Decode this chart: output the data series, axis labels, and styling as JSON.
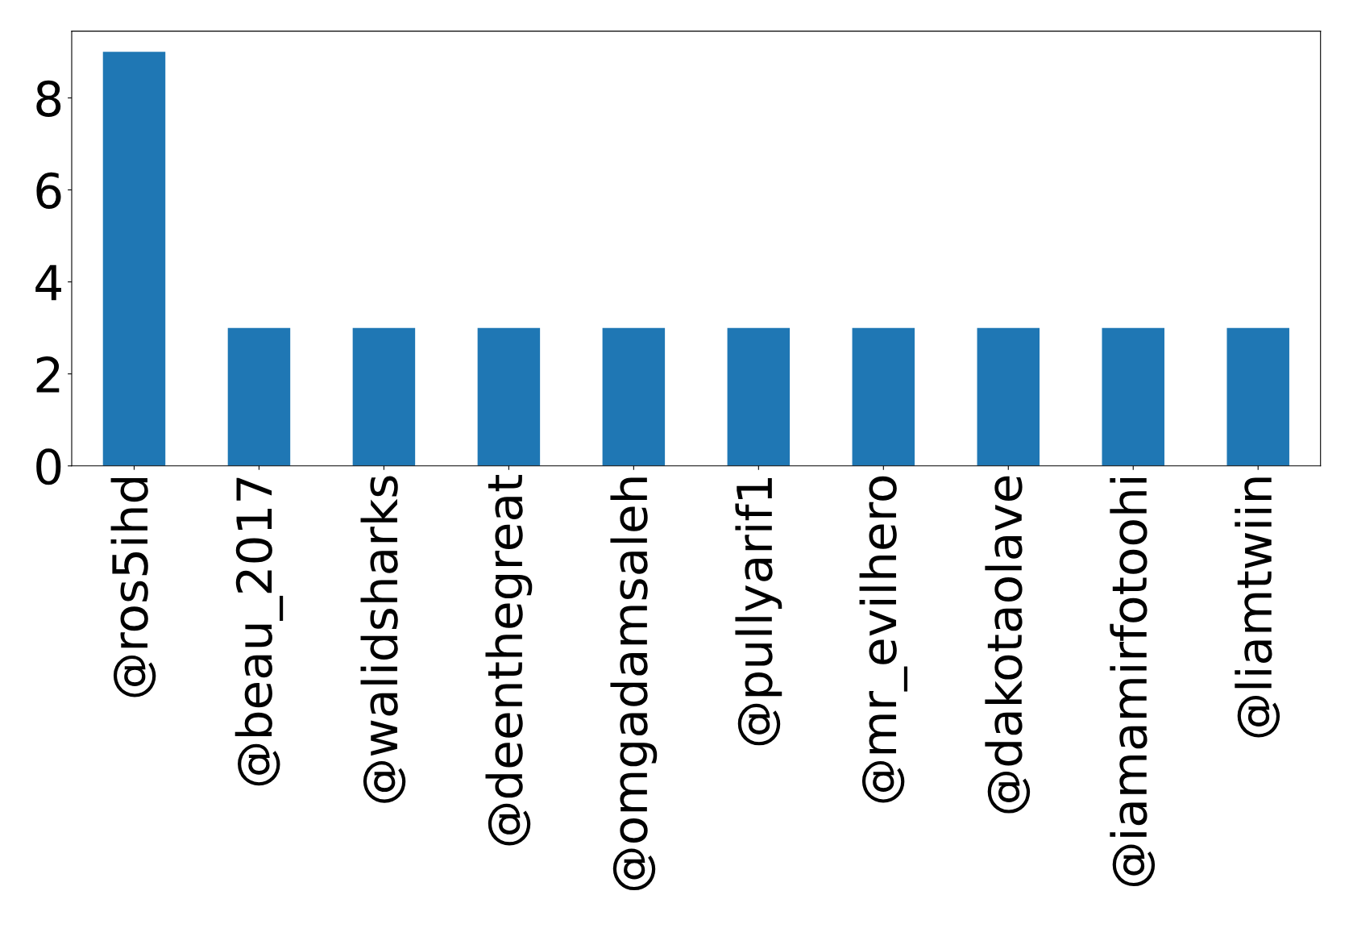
{
  "chart_data": {
    "type": "bar",
    "categories": [
      "@ros5ihd",
      "@beau_2017",
      "@walidsharks",
      "@deenthegreat",
      "@omgadamsaleh",
      "@pullyarif1",
      "@mr_evilhero",
      "@dakotaolave",
      "@iamamirfotoohi",
      "@liamtwiin"
    ],
    "values": [
      9,
      3,
      3,
      3,
      3,
      3,
      3,
      3,
      3,
      3
    ],
    "color": "#1f77b4",
    "ylim": [
      0,
      9.45
    ],
    "yticks": [
      0,
      2,
      4,
      6,
      8
    ],
    "grid": false
  }
}
